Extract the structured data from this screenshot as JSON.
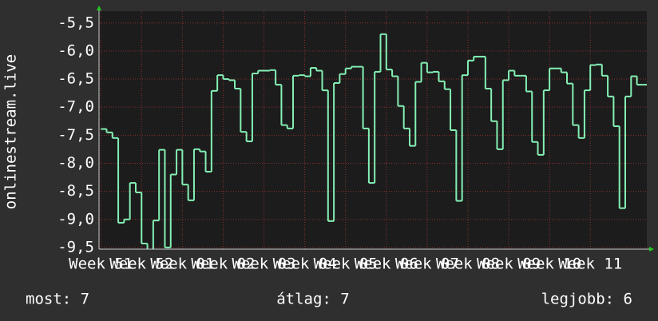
{
  "chart_data": {
    "type": "line",
    "y_label": "onlinestream.live",
    "x": [
      0,
      1,
      2,
      3,
      4,
      5,
      6,
      7,
      8,
      9,
      10,
      11,
      12,
      13,
      14,
      15,
      16,
      17,
      18,
      19,
      20,
      21,
      22,
      23,
      24,
      25,
      26,
      27,
      28,
      29,
      30,
      31,
      32,
      33,
      34,
      35,
      36,
      37,
      38,
      39,
      40,
      41,
      42,
      43,
      44,
      45,
      46,
      47,
      48,
      49,
      50,
      51,
      52,
      53,
      54,
      55,
      56,
      57,
      58,
      59,
      60,
      61,
      62,
      63,
      64,
      65,
      66,
      67,
      68,
      69,
      70,
      71,
      72,
      73,
      74,
      75,
      76,
      77,
      78,
      79,
      80,
      81,
      82,
      83,
      84,
      85,
      86,
      87,
      88,
      89,
      90,
      91,
      92,
      93
    ],
    "series": [
      {
        "name": "onlinestream.live",
        "color": "#84f0b4",
        "values": [
          -7.39,
          -7.45,
          -7.55,
          -9.06,
          -9.0,
          -8.35,
          -8.52,
          -9.43,
          -9.55,
          -9.02,
          -7.76,
          -9.5,
          -8.2,
          -7.76,
          -8.38,
          -8.66,
          -7.75,
          -7.79,
          -8.15,
          -6.71,
          -6.43,
          -6.5,
          -6.52,
          -6.67,
          -7.44,
          -7.61,
          -6.4,
          -6.35,
          -6.35,
          -6.34,
          -6.6,
          -7.32,
          -7.38,
          -6.44,
          -6.43,
          -6.45,
          -6.3,
          -6.35,
          -6.7,
          -9.03,
          -6.57,
          -6.41,
          -6.31,
          -6.28,
          -6.28,
          -7.38,
          -8.35,
          -6.37,
          -5.7,
          -6.33,
          -6.45,
          -6.98,
          -7.38,
          -7.69,
          -6.55,
          -6.21,
          -6.38,
          -6.37,
          -6.54,
          -6.68,
          -7.41,
          -8.67,
          -6.43,
          -6.17,
          -6.1,
          -6.1,
          -6.67,
          -7.25,
          -7.75,
          -6.52,
          -6.35,
          -6.44,
          -6.44,
          -6.72,
          -7.62,
          -7.85,
          -6.7,
          -6.31,
          -6.31,
          -6.38,
          -6.58,
          -7.32,
          -7.55,
          -6.7,
          -6.25,
          -6.24,
          -6.44,
          -6.81,
          -7.34,
          -8.8,
          -6.81,
          -6.45,
          -6.6,
          -6.6
        ]
      }
    ],
    "xlim": [
      -0.3,
      93.7
    ],
    "xticks": [
      {
        "value": 0,
        "label": "Week 51"
      },
      {
        "value": 7,
        "label": "Week 52"
      },
      {
        "value": 14,
        "label": "Week 01"
      },
      {
        "value": 21,
        "label": "Week 02"
      },
      {
        "value": 28,
        "label": "Week 03"
      },
      {
        "value": 35,
        "label": "Week 04"
      },
      {
        "value": 42,
        "label": "Week 05"
      },
      {
        "value": 49,
        "label": "Week 06"
      },
      {
        "value": 56,
        "label": "Week 07"
      },
      {
        "value": 63,
        "label": "Week 08"
      },
      {
        "value": 70,
        "label": "Week 09"
      },
      {
        "value": 77,
        "label": "Week 10"
      },
      {
        "value": 84,
        "label": "Week 11"
      }
    ],
    "ylim": [
      -9.53,
      -5.29
    ],
    "yticks": [
      {
        "value": -5.5,
        "label": "-5,5"
      },
      {
        "value": -6,
        "label": "-6,0"
      },
      {
        "value": -6.5,
        "label": "-6,5"
      },
      {
        "value": -7,
        "label": "-7,0"
      },
      {
        "value": -7.5,
        "label": "-7,5"
      },
      {
        "value": -8,
        "label": "-8,0"
      },
      {
        "value": -8.5,
        "label": "-8,5"
      },
      {
        "value": -9,
        "label": "-9,0"
      },
      {
        "value": -9.5,
        "label": "-9,5"
      }
    ],
    "grid": true,
    "footer": [
      "most: 7",
      "átlag: 7",
      "legjobb: 6"
    ]
  }
}
